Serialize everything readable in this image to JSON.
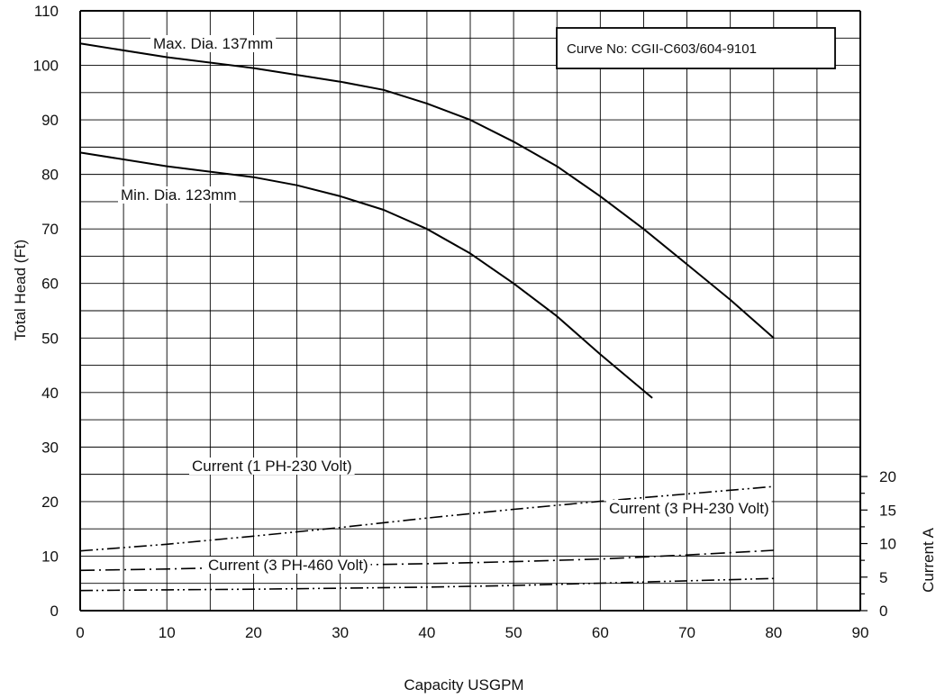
{
  "chart_data": {
    "type": "line",
    "title": "",
    "xlabel": "Capacity USGPM",
    "ylabel": "Total Head (Ft)",
    "y2label": "Current A",
    "xlim": [
      0,
      90
    ],
    "ylim": [
      0,
      110
    ],
    "y2lim": [
      0,
      20
    ],
    "x_ticks": [
      0,
      10,
      20,
      30,
      40,
      50,
      60,
      70,
      80,
      90
    ],
    "y_ticks": [
      0,
      10,
      20,
      30,
      40,
      50,
      60,
      70,
      80,
      90,
      100,
      110
    ],
    "y2_ticks": [
      0,
      5,
      10,
      15,
      20
    ],
    "grid": true,
    "annotation": "Curve No: CGII-C603/604-9101",
    "series": [
      {
        "name": "Max. Dia. 137mm",
        "style": "solid",
        "axis": "left",
        "x": [
          0,
          10,
          20,
          30,
          35,
          40,
          45,
          50,
          55,
          60,
          65,
          70,
          75,
          80
        ],
        "y": [
          104,
          101.5,
          99.5,
          97,
          95.5,
          93,
          90,
          86,
          81.5,
          76,
          70,
          63.5,
          57,
          50
        ]
      },
      {
        "name": "Min. Dia. 123mm",
        "style": "solid",
        "axis": "left",
        "x": [
          0,
          10,
          20,
          25,
          30,
          35,
          40,
          45,
          50,
          55,
          60,
          66
        ],
        "y": [
          84,
          81.5,
          79.5,
          78,
          76,
          73.5,
          70,
          65.5,
          60,
          54,
          47,
          39
        ]
      },
      {
        "name": "Current (1 PH-230 Volt)",
        "style": "dash-dot-dot",
        "axis": "right",
        "x": [
          0,
          10,
          20,
          30,
          40,
          50,
          60,
          70,
          80
        ],
        "y": [
          8.9,
          9.9,
          11.1,
          12.4,
          13.8,
          15.1,
          16.3,
          17.4,
          18.5
        ]
      },
      {
        "name": "Current (3 PH-230 Volt)",
        "style": "dash-dot",
        "axis": "right",
        "x": [
          0,
          10,
          20,
          30,
          40,
          50,
          60,
          70,
          80
        ],
        "y": [
          6.0,
          6.2,
          6.5,
          6.8,
          7.0,
          7.3,
          7.7,
          8.3,
          9.0
        ]
      },
      {
        "name": "Current (3 PH-460 Volt)",
        "style": "dash-dot-dot",
        "axis": "right",
        "x": [
          0,
          10,
          20,
          30,
          40,
          50,
          60,
          70,
          80
        ],
        "y": [
          3.0,
          3.1,
          3.2,
          3.35,
          3.5,
          3.75,
          4.1,
          4.45,
          4.8
        ]
      }
    ]
  }
}
